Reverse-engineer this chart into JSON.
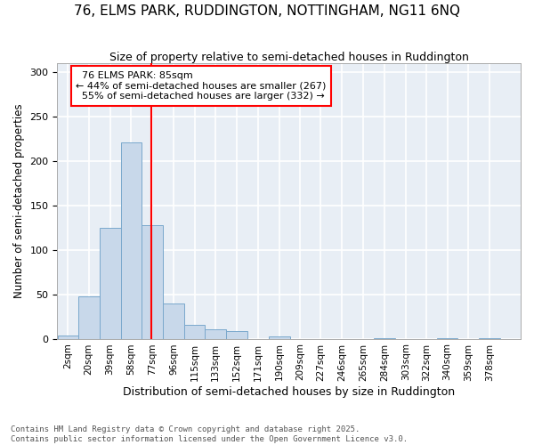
{
  "title": "76, ELMS PARK, RUDDINGTON, NOTTINGHAM, NG11 6NQ",
  "subtitle": "Size of property relative to semi-detached houses in Ruddington",
  "xlabel": "Distribution of semi-detached houses by size in Ruddington",
  "ylabel": "Number of semi-detached properties",
  "bar_color": "#c8d8ea",
  "bar_edge_color": "#7aa8cc",
  "background_color": "#e8eef5",
  "grid_color": "#ffffff",
  "red_line_x": 85,
  "property_label": "76 ELMS PARK: 85sqm",
  "smaller_pct": 44,
  "smaller_count": 267,
  "larger_pct": 55,
  "larger_count": 332,
  "bin_edges": [
    2,
    20,
    39,
    58,
    77,
    96,
    115,
    133,
    152,
    171,
    190,
    209,
    227,
    246,
    265,
    284,
    303,
    322,
    340,
    359,
    378,
    397
  ],
  "bin_labels": [
    "2sqm",
    "20sqm",
    "39sqm",
    "58sqm",
    "77sqm",
    "96sqm",
    "115sqm",
    "133sqm",
    "152sqm",
    "171sqm",
    "190sqm",
    "209sqm",
    "227sqm",
    "246sqm",
    "265sqm",
    "284sqm",
    "303sqm",
    "322sqm",
    "340sqm",
    "359sqm",
    "378sqm"
  ],
  "bar_heights": [
    4,
    48,
    125,
    221,
    128,
    40,
    16,
    11,
    9,
    0,
    3,
    0,
    0,
    0,
    0,
    1,
    0,
    0,
    1,
    0,
    1
  ],
  "ylim": [
    0,
    310
  ],
  "yticks": [
    0,
    50,
    100,
    150,
    200,
    250,
    300
  ],
  "footnote1": "Contains HM Land Registry data © Crown copyright and database right 2025.",
  "footnote2": "Contains public sector information licensed under the Open Government Licence v3.0."
}
